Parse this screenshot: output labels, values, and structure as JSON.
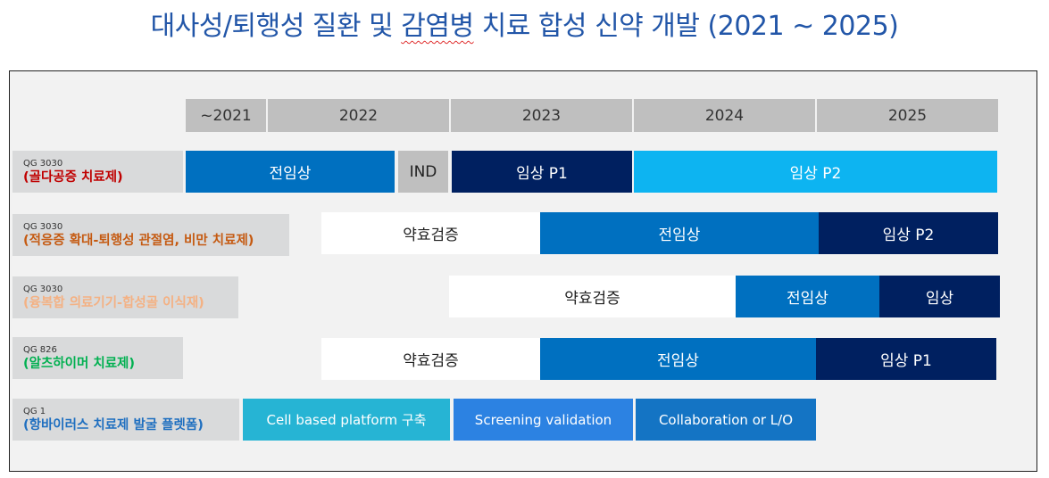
{
  "title": {
    "part1": "대사성/퇴행성 질환 및 ",
    "part2": "감염병",
    "part3": " 치료 합성 신약 개발 (2021 ~ 2025)"
  },
  "years": [
    "~2021",
    "2022",
    "2023",
    "2024",
    "2025"
  ],
  "rows": [
    {
      "code": "QG 3030",
      "name": "(골다공증 치료제)",
      "name_color": "#c00000",
      "bars": [
        "전임상",
        "IND",
        "임상 P1",
        "임상 P2"
      ]
    },
    {
      "code": "QG 3030",
      "name": "(적응증 확대-퇴행성 관절염, 비만 치료제)",
      "name_color": "#c55a11",
      "bars": [
        "약효검증",
        "전임상",
        "임상 P2"
      ]
    },
    {
      "code": "QG 3030",
      "name": "(융복합 의료기기-합성골 이식재)",
      "name_color": "#f4b183",
      "bars": [
        "약효검증",
        "전임상",
        "임상"
      ]
    },
    {
      "code": "QG 826",
      "name": "(알츠하이머 치료제)",
      "name_color": "#00b050",
      "bars": [
        "약효검증",
        "전임상",
        "임상 P1"
      ]
    },
    {
      "code": "QG 1",
      "name": "(항바이러스 치료제 발굴 플렛폼)",
      "name_color": "#1f6fc0",
      "bars": [
        "Cell based platform 구축",
        "Screening validation",
        "Collaboration  or L/O"
      ]
    }
  ]
}
